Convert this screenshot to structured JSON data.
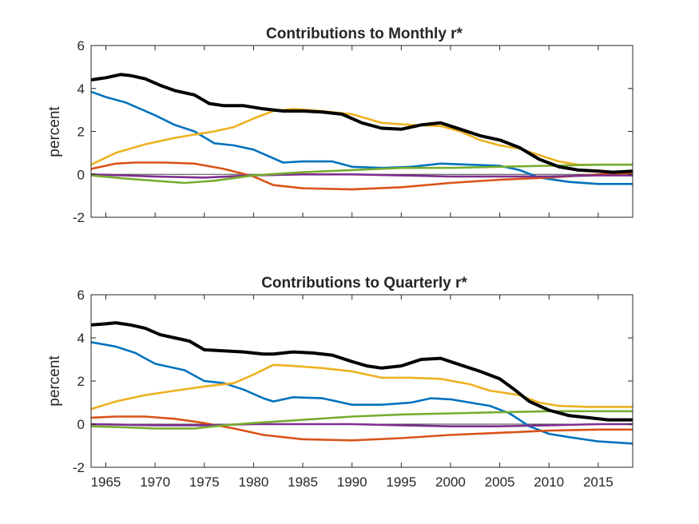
{
  "chart_data": [
    {
      "type": "line",
      "title": "Contributions to Monthly r*",
      "xlabel": "",
      "ylabel": "percent",
      "xlim": [
        1963.5,
        2018.5
      ],
      "ylim": [
        -2,
        6
      ],
      "x_ticks": [
        1965,
        1970,
        1975,
        1980,
        1985,
        1990,
        1995,
        2000,
        2005,
        2010,
        2015
      ],
      "x_tick_labels": [],
      "y_ticks": [
        -2,
        0,
        2,
        4,
        6
      ],
      "y_tick_labels": [
        "-2",
        "0",
        "2",
        "4",
        "6"
      ],
      "zero_line": true,
      "grid": false,
      "series": [
        {
          "color": "#0072BD",
          "values": [
            [
              1963.5,
              3.85
            ],
            [
              1965,
              3.6
            ],
            [
              1967,
              3.35
            ],
            [
              1970,
              2.75
            ],
            [
              1972,
              2.3
            ],
            [
              1974,
              2.0
            ],
            [
              1976,
              1.45
            ],
            [
              1978,
              1.35
            ],
            [
              1980,
              1.15
            ],
            [
              1983,
              0.55
            ],
            [
              1985,
              0.6
            ],
            [
              1988,
              0.6
            ],
            [
              1990,
              0.35
            ],
            [
              1993,
              0.3
            ],
            [
              1996,
              0.35
            ],
            [
              1999,
              0.5
            ],
            [
              2002,
              0.45
            ],
            [
              2005,
              0.4
            ],
            [
              2007,
              0.2
            ],
            [
              2009,
              -0.15
            ],
            [
              2012,
              -0.35
            ],
            [
              2015,
              -0.45
            ],
            [
              2018.5,
              -0.45
            ]
          ]
        },
        {
          "color": "#D95319",
          "values": [
            [
              1963.5,
              0.25
            ],
            [
              1966,
              0.5
            ],
            [
              1968,
              0.55
            ],
            [
              1971,
              0.55
            ],
            [
              1974,
              0.5
            ],
            [
              1977,
              0.25
            ],
            [
              1980,
              -0.1
            ],
            [
              1982,
              -0.5
            ],
            [
              1985,
              -0.65
            ],
            [
              1990,
              -0.7
            ],
            [
              1995,
              -0.6
            ],
            [
              2000,
              -0.4
            ],
            [
              2005,
              -0.25
            ],
            [
              2010,
              -0.15
            ],
            [
              2015,
              0.0
            ],
            [
              2018.5,
              0.05
            ]
          ]
        },
        {
          "color": "#EDB120",
          "values": [
            [
              1963.5,
              0.45
            ],
            [
              1966,
              1.0
            ],
            [
              1969,
              1.4
            ],
            [
              1972,
              1.7
            ],
            [
              1974,
              1.85
            ],
            [
              1976,
              2.0
            ],
            [
              1978,
              2.2
            ],
            [
              1980,
              2.6
            ],
            [
              1982,
              2.95
            ],
            [
              1984,
              3.05
            ],
            [
              1987,
              2.95
            ],
            [
              1990,
              2.8
            ],
            [
              1993,
              2.4
            ],
            [
              1996,
              2.3
            ],
            [
              1999,
              2.25
            ],
            [
              2001,
              2.0
            ],
            [
              2003,
              1.6
            ],
            [
              2005,
              1.35
            ],
            [
              2007,
              1.2
            ],
            [
              2009,
              0.9
            ],
            [
              2011,
              0.6
            ],
            [
              2013,
              0.45
            ],
            [
              2018.5,
              0.45
            ]
          ]
        },
        {
          "color": "#7E2F8E",
          "values": [
            [
              1963.5,
              0.0
            ],
            [
              1970,
              -0.1
            ],
            [
              1975,
              -0.15
            ],
            [
              1980,
              -0.05
            ],
            [
              1985,
              0.0
            ],
            [
              1990,
              0.0
            ],
            [
              1995,
              -0.05
            ],
            [
              2000,
              -0.1
            ],
            [
              2005,
              -0.1
            ],
            [
              2010,
              -0.1
            ],
            [
              2015,
              -0.05
            ],
            [
              2018.5,
              -0.05
            ]
          ]
        },
        {
          "color": "#77AC30",
          "values": [
            [
              1963.5,
              -0.05
            ],
            [
              1967,
              -0.2
            ],
            [
              1970,
              -0.3
            ],
            [
              1973,
              -0.4
            ],
            [
              1976,
              -0.3
            ],
            [
              1980,
              -0.05
            ],
            [
              1985,
              0.1
            ],
            [
              1990,
              0.2
            ],
            [
              1995,
              0.3
            ],
            [
              2000,
              0.3
            ],
            [
              2005,
              0.35
            ],
            [
              2010,
              0.4
            ],
            [
              2015,
              0.45
            ],
            [
              2018.5,
              0.45
            ]
          ]
        },
        {
          "color": "#000000",
          "width": 4,
          "values": [
            [
              1963.5,
              4.4
            ],
            [
              1965,
              4.5
            ],
            [
              1966.5,
              4.65
            ],
            [
              1967.5,
              4.6
            ],
            [
              1969,
              4.45
            ],
            [
              1970.5,
              4.15
            ],
            [
              1972,
              3.9
            ],
            [
              1974,
              3.7
            ],
            [
              1975.5,
              3.3
            ],
            [
              1977,
              3.2
            ],
            [
              1979,
              3.2
            ],
            [
              1981,
              3.05
            ],
            [
              1983,
              2.95
            ],
            [
              1985,
              2.95
            ],
            [
              1987,
              2.9
            ],
            [
              1989,
              2.8
            ],
            [
              1991,
              2.4
            ],
            [
              1993,
              2.15
            ],
            [
              1995,
              2.1
            ],
            [
              1997,
              2.3
            ],
            [
              1999,
              2.4
            ],
            [
              2001,
              2.1
            ],
            [
              2003,
              1.8
            ],
            [
              2005,
              1.6
            ],
            [
              2007,
              1.25
            ],
            [
              2009,
              0.7
            ],
            [
              2011,
              0.35
            ],
            [
              2013,
              0.2
            ],
            [
              2015,
              0.15
            ],
            [
              2016.5,
              0.1
            ],
            [
              2018.5,
              0.15
            ]
          ]
        }
      ]
    },
    {
      "type": "line",
      "title": "Contributions to Quarterly r*",
      "xlabel": "",
      "ylabel": "percent",
      "xlim": [
        1963.5,
        2018.5
      ],
      "ylim": [
        -2,
        6
      ],
      "x_ticks": [
        1965,
        1970,
        1975,
        1980,
        1985,
        1990,
        1995,
        2000,
        2005,
        2010,
        2015
      ],
      "x_tick_labels": [
        "1965",
        "1970",
        "1975",
        "1980",
        "1985",
        "1990",
        "1995",
        "2000",
        "2005",
        "2010",
        "2015"
      ],
      "y_ticks": [
        -2,
        0,
        2,
        4,
        6
      ],
      "y_tick_labels": [
        "-2",
        "0",
        "2",
        "4",
        "6"
      ],
      "zero_line": true,
      "grid": false,
      "series": [
        {
          "color": "#0072BD",
          "values": [
            [
              1963.5,
              3.8
            ],
            [
              1966,
              3.6
            ],
            [
              1968,
              3.3
            ],
            [
              1970,
              2.8
            ],
            [
              1973,
              2.5
            ],
            [
              1975,
              2.0
            ],
            [
              1977,
              1.9
            ],
            [
              1979,
              1.6
            ],
            [
              1981,
              1.2
            ],
            [
              1982,
              1.05
            ],
            [
              1984,
              1.25
            ],
            [
              1987,
              1.2
            ],
            [
              1990,
              0.9
            ],
            [
              1993,
              0.9
            ],
            [
              1996,
              1.0
            ],
            [
              1998,
              1.2
            ],
            [
              2000,
              1.15
            ],
            [
              2002,
              1.0
            ],
            [
              2004,
              0.85
            ],
            [
              2006,
              0.5
            ],
            [
              2008,
              -0.1
            ],
            [
              2010,
              -0.45
            ],
            [
              2012,
              -0.6
            ],
            [
              2015,
              -0.8
            ],
            [
              2018.5,
              -0.9
            ]
          ]
        },
        {
          "color": "#D95319",
          "values": [
            [
              1963.5,
              0.3
            ],
            [
              1966,
              0.35
            ],
            [
              1969,
              0.35
            ],
            [
              1972,
              0.25
            ],
            [
              1975,
              0.05
            ],
            [
              1978,
              -0.2
            ],
            [
              1981,
              -0.5
            ],
            [
              1985,
              -0.7
            ],
            [
              1990,
              -0.75
            ],
            [
              1995,
              -0.65
            ],
            [
              2000,
              -0.5
            ],
            [
              2005,
              -0.4
            ],
            [
              2010,
              -0.3
            ],
            [
              2015,
              -0.25
            ],
            [
              2018.5,
              -0.25
            ]
          ]
        },
        {
          "color": "#EDB120",
          "values": [
            [
              1963.5,
              0.7
            ],
            [
              1966,
              1.05
            ],
            [
              1969,
              1.35
            ],
            [
              1972,
              1.55
            ],
            [
              1975,
              1.75
            ],
            [
              1978,
              1.9
            ],
            [
              1980,
              2.3
            ],
            [
              1982,
              2.75
            ],
            [
              1984,
              2.7
            ],
            [
              1987,
              2.6
            ],
            [
              1990,
              2.45
            ],
            [
              1993,
              2.15
            ],
            [
              1996,
              2.15
            ],
            [
              1999,
              2.1
            ],
            [
              2002,
              1.85
            ],
            [
              2004,
              1.55
            ],
            [
              2007,
              1.35
            ],
            [
              2009,
              1.0
            ],
            [
              2011,
              0.85
            ],
            [
              2014,
              0.8
            ],
            [
              2018.5,
              0.8
            ]
          ]
        },
        {
          "color": "#7E2F8E",
          "values": [
            [
              1963.5,
              0.0
            ],
            [
              1970,
              -0.05
            ],
            [
              1975,
              -0.05
            ],
            [
              1980,
              0.0
            ],
            [
              1985,
              0.0
            ],
            [
              1990,
              0.0
            ],
            [
              1995,
              -0.05
            ],
            [
              2000,
              -0.1
            ],
            [
              2005,
              -0.1
            ],
            [
              2010,
              -0.05
            ],
            [
              2015,
              0.0
            ],
            [
              2018.5,
              0.0
            ]
          ]
        },
        {
          "color": "#77AC30",
          "values": [
            [
              1963.5,
              -0.1
            ],
            [
              1967,
              -0.15
            ],
            [
              1970,
              -0.2
            ],
            [
              1974,
              -0.2
            ],
            [
              1977,
              -0.05
            ],
            [
              1980,
              0.05
            ],
            [
              1985,
              0.2
            ],
            [
              1990,
              0.35
            ],
            [
              1995,
              0.45
            ],
            [
              2000,
              0.5
            ],
            [
              2005,
              0.55
            ],
            [
              2010,
              0.6
            ],
            [
              2015,
              0.6
            ],
            [
              2018.5,
              0.6
            ]
          ]
        },
        {
          "color": "#000000",
          "width": 4,
          "values": [
            [
              1963.5,
              4.6
            ],
            [
              1965,
              4.65
            ],
            [
              1966,
              4.7
            ],
            [
              1967.5,
              4.6
            ],
            [
              1969,
              4.45
            ],
            [
              1970.5,
              4.15
            ],
            [
              1972,
              4.0
            ],
            [
              1973.5,
              3.85
            ],
            [
              1975,
              3.45
            ],
            [
              1977,
              3.4
            ],
            [
              1979,
              3.35
            ],
            [
              1981,
              3.25
            ],
            [
              1982,
              3.25
            ],
            [
              1984,
              3.35
            ],
            [
              1986,
              3.3
            ],
            [
              1988,
              3.2
            ],
            [
              1990,
              2.9
            ],
            [
              1991.5,
              2.7
            ],
            [
              1993,
              2.6
            ],
            [
              1995,
              2.7
            ],
            [
              1997,
              3.0
            ],
            [
              1999,
              3.05
            ],
            [
              2001,
              2.75
            ],
            [
              2003,
              2.45
            ],
            [
              2005,
              2.1
            ],
            [
              2006.5,
              1.6
            ],
            [
              2008,
              1.05
            ],
            [
              2010,
              0.65
            ],
            [
              2012,
              0.4
            ],
            [
              2014,
              0.3
            ],
            [
              2016,
              0.2
            ],
            [
              2018.5,
              0.2
            ]
          ]
        }
      ]
    }
  ]
}
